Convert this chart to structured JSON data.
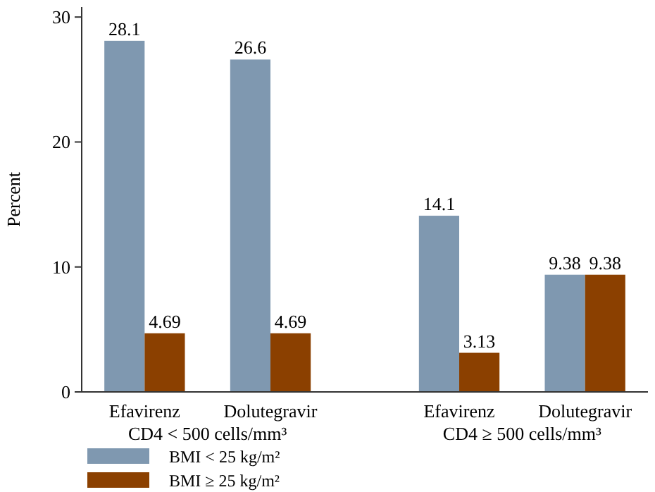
{
  "chart_data": {
    "type": "bar",
    "ylabel": "Percent",
    "categories": [
      "Efavirenz",
      "Dolutegravir",
      "Efavirenz",
      "Dolutegravir"
    ],
    "series": [
      {
        "name": "BMI < 25 kg/m²",
        "color": "#7f98b0",
        "values": [
          28.1,
          26.6,
          14.1,
          9.38
        ]
      },
      {
        "name": "BMI ≥ 25 kg/m²",
        "color": "#8b4000",
        "values": [
          4.69,
          4.69,
          3.13,
          9.38
        ]
      }
    ],
    "annotations": [
      "CD4 < 500 cells/mm³",
      "CD4 ≥ 500 cells/mm³"
    ],
    "ylim": [
      0,
      30.8
    ],
    "yticks": [
      0,
      10,
      20,
      30
    ],
    "data_labels": true,
    "legend": "bottom left",
    "grid": false
  }
}
